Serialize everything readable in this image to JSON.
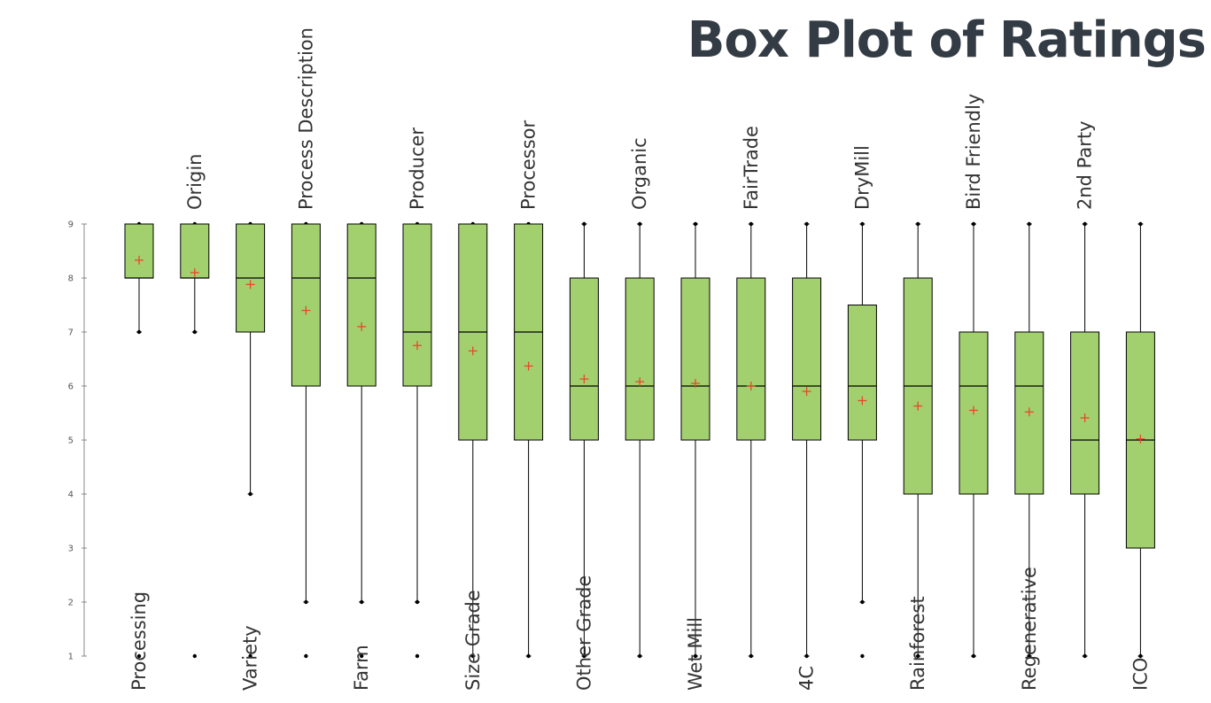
{
  "chart_data": {
    "type": "box",
    "title": "Box Plot of Ratings",
    "xlabel": "",
    "ylabel": "",
    "ylim": [
      1,
      9
    ],
    "yticks": [
      "1",
      "2",
      "3",
      "4",
      "5",
      "6",
      "7",
      "8",
      "9"
    ],
    "grid": false,
    "legend": "none",
    "colors": {
      "box_fill": "#a3d06f",
      "box_stroke": "#000000",
      "mean_marker": "#e8472a",
      "title": "#333c44"
    },
    "categories": [
      "Processing",
      "Origin",
      "Variety",
      "Process Description",
      "Farm",
      "Producer",
      "Size Grade",
      "Processor",
      "Other Grade",
      "Organic",
      "Wet Mill",
      "FairTrade",
      "4C",
      "DryMill",
      "Rainforest",
      "Bird Friendly",
      "Regenerative",
      "2nd  Party",
      "ICO"
    ],
    "label_positions": [
      "bottom",
      "top",
      "bottom",
      "top",
      "bottom",
      "top",
      "bottom",
      "top",
      "bottom",
      "top",
      "bottom",
      "top",
      "bottom",
      "top",
      "bottom",
      "top",
      "bottom",
      "top",
      "bottom"
    ],
    "boxes": [
      {
        "min": 7,
        "q1": 8,
        "median": 8,
        "q3": 9,
        "max": 9,
        "mean": 8.33,
        "outliers": [
          1
        ]
      },
      {
        "min": 7,
        "q1": 8,
        "median": 8,
        "q3": 9,
        "max": 9,
        "mean": 8.1,
        "outliers": [
          1
        ]
      },
      {
        "min": 4,
        "q1": 7,
        "median": 8,
        "q3": 9,
        "max": 9,
        "mean": 7.88,
        "outliers": [
          1
        ]
      },
      {
        "min": 2,
        "q1": 6,
        "median": 8,
        "q3": 9,
        "max": 9,
        "mean": 7.4,
        "outliers": [
          1
        ]
      },
      {
        "min": 2,
        "q1": 6,
        "median": 8,
        "q3": 9,
        "max": 9,
        "mean": 7.1,
        "outliers": [
          1
        ]
      },
      {
        "min": 2,
        "q1": 6,
        "median": 7,
        "q3": 9,
        "max": 9,
        "mean": 6.75,
        "outliers": [
          1
        ]
      },
      {
        "min": 1,
        "q1": 5,
        "median": 7,
        "q3": 9,
        "max": 9,
        "mean": 6.65,
        "outliers": []
      },
      {
        "min": 1,
        "q1": 5,
        "median": 7,
        "q3": 9,
        "max": 9,
        "mean": 6.37,
        "outliers": []
      },
      {
        "min": 1,
        "q1": 5,
        "median": 6,
        "q3": 8,
        "max": 9,
        "mean": 6.13,
        "outliers": []
      },
      {
        "min": 1,
        "q1": 5,
        "median": 6,
        "q3": 8,
        "max": 9,
        "mean": 6.08,
        "outliers": []
      },
      {
        "min": 1,
        "q1": 5,
        "median": 6,
        "q3": 8,
        "max": 9,
        "mean": 6.05,
        "outliers": []
      },
      {
        "min": 1,
        "q1": 5,
        "median": 6,
        "q3": 8,
        "max": 9,
        "mean": 6.0,
        "outliers": []
      },
      {
        "min": 1,
        "q1": 5,
        "median": 6,
        "q3": 8,
        "max": 9,
        "mean": 5.9,
        "outliers": []
      },
      {
        "min": 2,
        "q1": 5,
        "median": 6,
        "q3": 7.5,
        "max": 9,
        "mean": 5.73,
        "outliers": [
          1
        ]
      },
      {
        "min": 1,
        "q1": 4,
        "median": 6,
        "q3": 8,
        "max": 9,
        "mean": 5.63,
        "outliers": []
      },
      {
        "min": 1,
        "q1": 4,
        "median": 6,
        "q3": 7,
        "max": 9,
        "mean": 5.55,
        "outliers": []
      },
      {
        "min": 1,
        "q1": 4,
        "median": 6,
        "q3": 7,
        "max": 9,
        "mean": 5.52,
        "outliers": []
      },
      {
        "min": 1,
        "q1": 4,
        "median": 5,
        "q3": 7,
        "max": 9,
        "mean": 5.41,
        "outliers": []
      },
      {
        "min": 1,
        "q1": 3,
        "median": 5,
        "q3": 7,
        "max": 9,
        "mean": 5.02,
        "outliers": []
      }
    ]
  }
}
